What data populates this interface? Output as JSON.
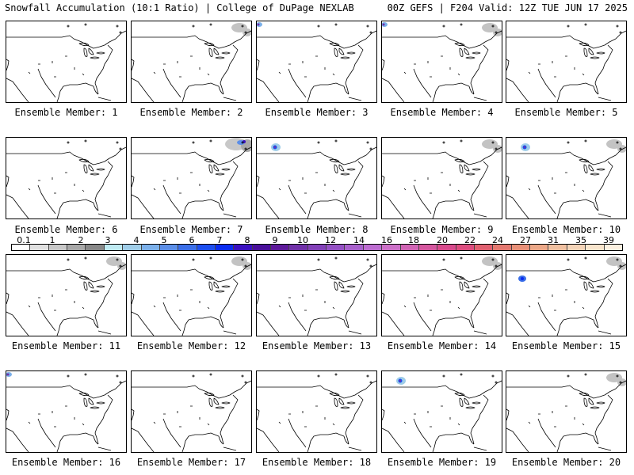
{
  "header": {
    "left": "Snowfall Accumulation (10:1 Ratio) | College of DuPage NEXLAB",
    "right": "00Z GEFS | F204 Valid: 12Z TUE JUN 17 2025"
  },
  "panel_label_prefix": "Ensemble Member: ",
  "members": [
    {
      "number": "1",
      "snow": []
    },
    {
      "number": "2",
      "snow": [
        "northeast-canada"
      ]
    },
    {
      "number": "3",
      "snow": [
        "northwest-corner"
      ]
    },
    {
      "number": "4",
      "snow": [
        "northeast-canada",
        "northwest-corner"
      ]
    },
    {
      "number": "5",
      "snow": []
    },
    {
      "number": "6",
      "snow": []
    },
    {
      "number": "7",
      "snow": [
        "northeast-canada-heavy"
      ]
    },
    {
      "number": "8",
      "snow": [
        "northwest-canada"
      ]
    },
    {
      "number": "9",
      "snow": [
        "northeast-canada"
      ]
    },
    {
      "number": "10",
      "snow": [
        "northwest-canada",
        "northeast-canada"
      ]
    },
    {
      "number": "11",
      "snow": [
        "northeast-canada"
      ]
    },
    {
      "number": "12",
      "snow": [
        "northeast-canada"
      ]
    },
    {
      "number": "13",
      "snow": []
    },
    {
      "number": "14",
      "snow": [
        "northeast-canada"
      ]
    },
    {
      "number": "15",
      "snow": [
        "northeast-canada",
        "rockies"
      ]
    },
    {
      "number": "16",
      "snow": [
        "northwest-corner"
      ]
    },
    {
      "number": "17",
      "snow": []
    },
    {
      "number": "18",
      "snow": []
    },
    {
      "number": "19",
      "snow": [
        "northwest-canada"
      ]
    },
    {
      "number": "20",
      "snow": [
        "northeast-canada"
      ]
    }
  ],
  "colorbar": {
    "ticks": [
      "0.1",
      "1",
      "2",
      "3",
      "4",
      "5",
      "6",
      "7",
      "8",
      "9",
      "10",
      "12",
      "14",
      "16",
      "18",
      "20",
      "22",
      "24",
      "27",
      "31",
      "35",
      "39"
    ],
    "colors": [
      "#ffffff",
      "#e0e0e0",
      "#c8c8c8",
      "#a8a8a8",
      "#888888",
      "#bfeaf2",
      "#9fcde8",
      "#7bb0ea",
      "#5b8ee8",
      "#3a6ee8",
      "#1c4ef0",
      "#0a2cf0",
      "#3a10c0",
      "#4a109a",
      "#5e1a9a",
      "#7030a8",
      "#8240b8",
      "#9450c4",
      "#a860cc",
      "#bc6cd0",
      "#cc70c8",
      "#d064b4",
      "#d4569e",
      "#d84a8c",
      "#dc4c7e",
      "#e06070",
      "#e47870",
      "#e89078",
      "#eca888",
      "#f0c0a0",
      "#f4d4b8",
      "#f8e4cc",
      "#fcf0e0"
    ]
  }
}
